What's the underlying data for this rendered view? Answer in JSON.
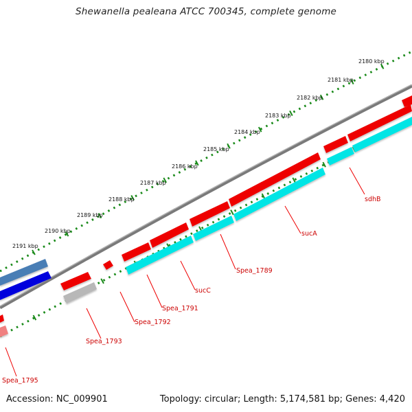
{
  "title": "Shewanella pealeana ATCC 700345, complete genome",
  "footer": {
    "accession": "Accession: NC_009901",
    "topology": "Topology: circular; Length: 5,174,581 bp; Genes: 4,420"
  },
  "ticks": [
    "2180 kbp",
    "2181 kbp",
    "2182 kbp",
    "2183 kbp",
    "2184 kbp",
    "2185 kbp",
    "2186 kbp",
    "2187 kbp",
    "2188 kbp",
    "2189 kbp",
    "2190 kbp",
    "2191 kbp"
  ],
  "genes": [
    "sdhB",
    "sucA",
    "Spea_1789",
    "sucC",
    "Spea_1791",
    "Spea_1792",
    "Spea_1793",
    "Spea_1795"
  ],
  "colors": {
    "forward": "#ee0000",
    "reverse": "#00e5e5",
    "blue": "#0000dd",
    "steel": "#4a7eb5",
    "gray": "#b8b8b8",
    "pink": "#f08080",
    "backbone": "#808080",
    "dots": "#1a8a1a",
    "label": "#cc0000"
  }
}
